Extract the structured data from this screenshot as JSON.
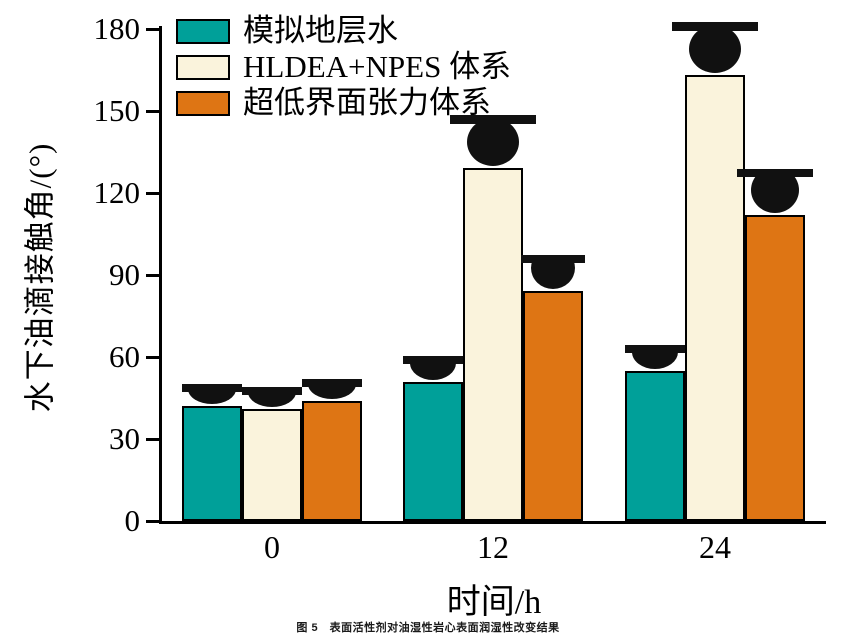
{
  "chart_data": {
    "type": "bar",
    "title": "",
    "categories": [
      "0",
      "12",
      "24"
    ],
    "series": [
      {
        "name": "模拟地层水",
        "color": "#00A099",
        "values": [
          42,
          51,
          55
        ]
      },
      {
        "name": "HLDEA+NPES 体系",
        "color": "#FAF3DC",
        "values": [
          41,
          129,
          163
        ]
      },
      {
        "name": "超低界面张力体系",
        "color": "#DE7514",
        "values": [
          44,
          84,
          112
        ]
      }
    ],
    "xlabel": "时间/h",
    "ylabel": "水下油滴接触角/(°)",
    "ylim": [
      0,
      180
    ],
    "yticks": [
      0,
      30,
      60,
      90,
      120,
      150,
      180
    ],
    "legend_position": "top-left-inside",
    "grid": false,
    "annotation": "black oil-droplet glyph above each bar; droplet becomes rounder as contact angle increases"
  },
  "caption": "图 5　表面活性剂对油湿性岩心表面润湿性改变结果",
  "colors": {
    "bar_outline": "#000000",
    "droplet": "#111111",
    "axis": "#000000",
    "background": "#FFFFFF"
  }
}
